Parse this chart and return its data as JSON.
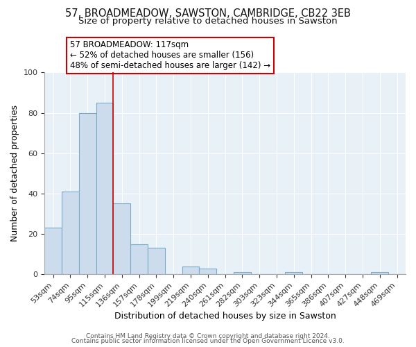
{
  "title": "57, BROADMEADOW, SAWSTON, CAMBRIDGE, CB22 3EB",
  "subtitle": "Size of property relative to detached houses in Sawston",
  "xlabel": "Distribution of detached houses by size in Sawston",
  "ylabel": "Number of detached properties",
  "bins": [
    "53sqm",
    "74sqm",
    "95sqm",
    "115sqm",
    "136sqm",
    "157sqm",
    "178sqm",
    "199sqm",
    "219sqm",
    "240sqm",
    "261sqm",
    "282sqm",
    "303sqm",
    "323sqm",
    "344sqm",
    "365sqm",
    "386sqm",
    "407sqm",
    "427sqm",
    "448sqm",
    "469sqm"
  ],
  "values": [
    23,
    41,
    80,
    85,
    35,
    15,
    13,
    0,
    4,
    3,
    0,
    1,
    0,
    0,
    1,
    0,
    0,
    0,
    0,
    1,
    0
  ],
  "bar_color": "#ccdcec",
  "bar_edge_color": "#7aaac8",
  "plot_bg_color": "#e8f0f8",
  "fig_bg_color": "#ffffff",
  "grid_color": "#ffffff",
  "annotation_text": "57 BROADMEADOW: 117sqm\n← 52% of detached houses are smaller (156)\n48% of semi-detached houses are larger (142) →",
  "annotation_box_color": "white",
  "annotation_box_edge_color": "#cc0000",
  "vline_color": "#cc0000",
  "vline_x": 3.5,
  "ylim": [
    0,
    100
  ],
  "yticks": [
    0,
    20,
    40,
    60,
    80,
    100
  ],
  "footer1": "Contains HM Land Registry data © Crown copyright and database right 2024.",
  "footer2": "Contains public sector information licensed under the Open Government Licence v3.0.",
  "title_fontsize": 10.5,
  "subtitle_fontsize": 9.5,
  "axis_label_fontsize": 9,
  "tick_fontsize": 8,
  "annotation_fontsize": 8.5,
  "footer_fontsize": 6.5
}
